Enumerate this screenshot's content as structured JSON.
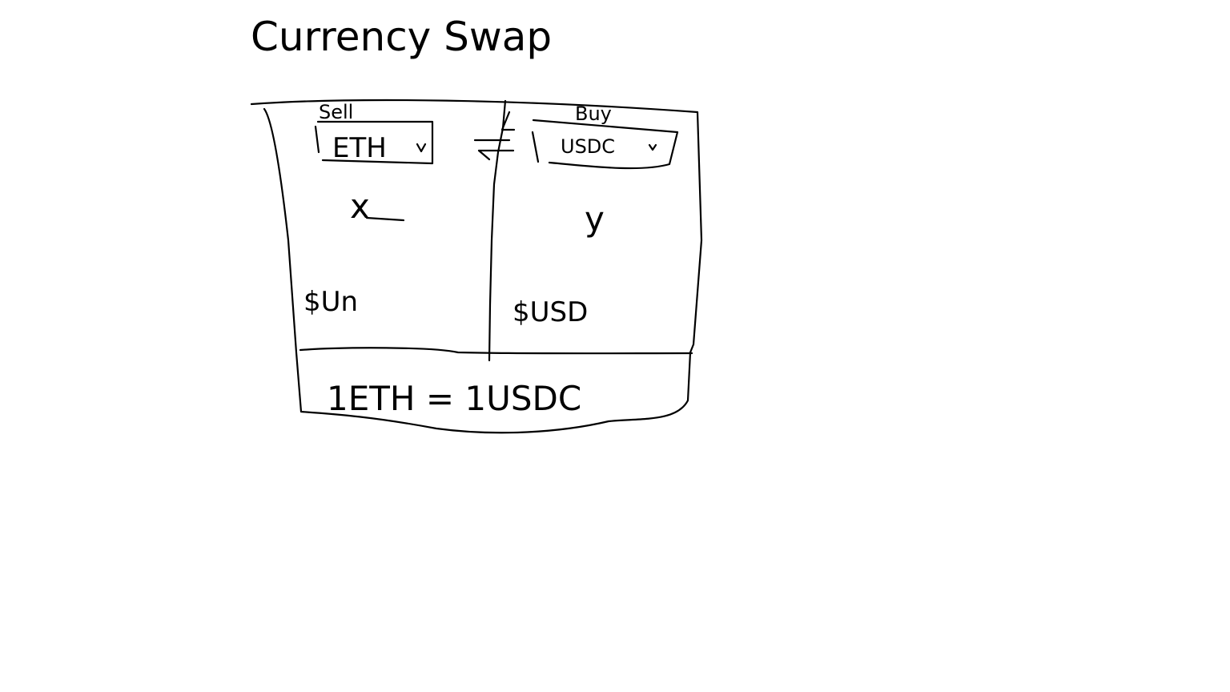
{
  "title": "Currency Swap",
  "sell": {
    "label": "Sell",
    "token": "ETH",
    "amount": "x",
    "usd_value": "$Un"
  },
  "buy": {
    "label": "Buy",
    "token": "USDC",
    "amount": "y",
    "usd_value": "$USD"
  },
  "swap_icon": "swap-arrows-icon",
  "dropdown_icon": "chevron-down-icon",
  "rate": "1ETH = 1USDC"
}
